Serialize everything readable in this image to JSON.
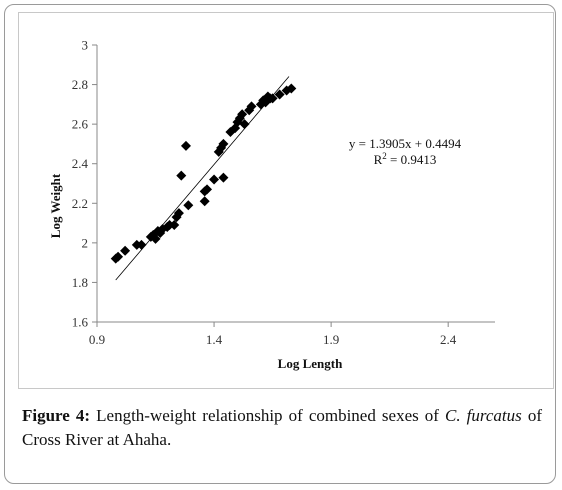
{
  "chart_data": {
    "type": "scatter",
    "title": "",
    "xlabel": "Log Length",
    "ylabel": "Log Weight",
    "xlim": [
      0.9,
      2.6
    ],
    "ylim": [
      1.6,
      3.0
    ],
    "xticks": [
      0.9,
      1.4,
      1.9,
      2.4
    ],
    "xtick_labels": [
      "0.9",
      "1.4",
      "1.9",
      "2.4"
    ],
    "yticks": [
      1.6,
      1.8,
      2.0,
      2.2,
      2.4,
      2.6,
      2.8,
      3.0
    ],
    "ytick_labels": [
      "1.6",
      "1.8",
      "2",
      "2.2",
      "2.4",
      "2.6",
      "2.8",
      "3"
    ],
    "grid": false,
    "marker": "diamond",
    "marker_color": "#000000",
    "series": [
      {
        "points": [
          [
            0.98,
            1.92
          ],
          [
            0.99,
            1.93
          ],
          [
            1.02,
            1.96
          ],
          [
            1.07,
            1.99
          ],
          [
            1.09,
            1.99
          ],
          [
            1.13,
            2.03
          ],
          [
            1.14,
            2.04
          ],
          [
            1.15,
            2.02
          ],
          [
            1.16,
            2.06
          ],
          [
            1.17,
            2.05
          ],
          [
            1.18,
            2.07
          ],
          [
            1.2,
            2.08
          ],
          [
            1.21,
            2.09
          ],
          [
            1.23,
            2.09
          ],
          [
            1.24,
            2.13
          ],
          [
            1.25,
            2.15
          ],
          [
            1.26,
            2.34
          ],
          [
            1.28,
            2.49
          ],
          [
            1.29,
            2.19
          ],
          [
            1.36,
            2.21
          ],
          [
            1.36,
            2.26
          ],
          [
            1.37,
            2.27
          ],
          [
            1.4,
            2.32
          ],
          [
            1.42,
            2.46
          ],
          [
            1.43,
            2.48
          ],
          [
            1.44,
            2.5
          ],
          [
            1.44,
            2.33
          ],
          [
            1.47,
            2.56
          ],
          [
            1.49,
            2.58
          ],
          [
            1.5,
            2.61
          ],
          [
            1.51,
            2.63
          ],
          [
            1.52,
            2.65
          ],
          [
            1.53,
            2.6
          ],
          [
            1.55,
            2.67
          ],
          [
            1.56,
            2.69
          ],
          [
            1.6,
            2.7
          ],
          [
            1.61,
            2.72
          ],
          [
            1.62,
            2.71
          ],
          [
            1.63,
            2.74
          ],
          [
            1.64,
            2.73
          ],
          [
            1.65,
            2.73
          ],
          [
            1.68,
            2.75
          ],
          [
            1.71,
            2.77
          ],
          [
            1.73,
            2.78
          ]
        ]
      }
    ],
    "trendline": {
      "slope": 1.3905,
      "intercept": 0.4494,
      "x_range": [
        0.98,
        1.72
      ],
      "color": "#000000"
    },
    "equation_text": "y = 1.3905x + 0.4494",
    "r2_label": "R",
    "r2_sup": "2",
    "r2_value": " = 0.9413"
  },
  "caption": {
    "label": "Figure 4:",
    "text1": " Length-weight relationship of combined sexes of ",
    "italic1": "C. furcatus",
    "text2": " of Cross River at Ahaha."
  }
}
